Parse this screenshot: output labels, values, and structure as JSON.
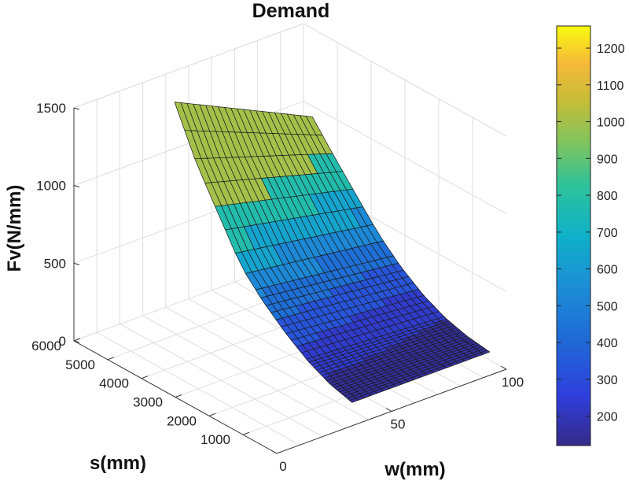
{
  "chart_data": {
    "type": "surface3d",
    "title": "Demand",
    "xlabel": "w(mm)",
    "ylabel": "s(mm)",
    "zlabel": "Fv(N/mm)",
    "xlim": [
      0,
      100
    ],
    "ylim": [
      0,
      6000
    ],
    "zlim": [
      0,
      1500
    ],
    "x_ticks": [
      "0",
      "50",
      "100"
    ],
    "y_ticks": [
      "1000",
      "2000",
      "3000",
      "4000",
      "5000",
      "6000"
    ],
    "z_ticks": [
      "0",
      "500",
      "1000",
      "1500"
    ],
    "colormap": "parula",
    "colorbar": {
      "range": [
        120,
        1260
      ],
      "ticks": [
        "200",
        "300",
        "400",
        "500",
        "600",
        "700",
        "800",
        "900",
        "1000",
        "1100",
        "1200"
      ]
    },
    "surface": {
      "w_range": [
        35,
        95
      ],
      "s_range": [
        150,
        5400
      ],
      "w_segments": 22,
      "fv_at_w_min": [
        120,
        160,
        230,
        330,
        450,
        600,
        850,
        1100,
        1420
      ],
      "fv_at_w_max": [
        120,
        140,
        180,
        250,
        350,
        480,
        650,
        820,
        1000
      ],
      "color_bands": [
        180,
        280,
        380,
        480,
        580,
        700,
        850
      ]
    },
    "grid": true
  }
}
